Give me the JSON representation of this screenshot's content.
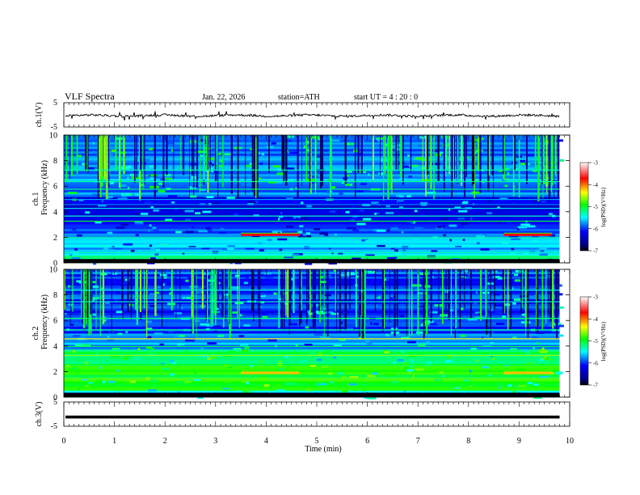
{
  "header": {
    "title": "VLF  Spectra",
    "date": "Jan. 22, 2026",
    "station": "station=ATH",
    "start_ut": "start  UT  =   4  : 20 : 0"
  },
  "panels": {
    "ch1_waveform": {
      "ylabel": "ch.1(V)",
      "ticks": [
        "5",
        "-5"
      ]
    },
    "ch1_spectrogram": {
      "ylabel_top": "ch.1",
      "ylabel": "Frequency  (kHz)"
    },
    "ch2_spectrogram": {
      "ylabel_top": "ch.2",
      "ylabel": "Frequency  (kHz)"
    },
    "ch3_waveform": {
      "ylabel": "ch.3(V)",
      "ticks": [
        "5",
        "-5"
      ]
    }
  },
  "colorbar": {
    "label": "log(PSD)(V²/Hz)",
    "ticks": [
      "-3",
      "-4",
      "-5",
      "-6",
      "-7"
    ],
    "colors": [
      "#ffffff",
      "#ff0000",
      "#ffff00",
      "#00ff00",
      "#00ffff",
      "#0000ff",
      "#000000"
    ]
  },
  "chart_data": {
    "type": "heatmap",
    "xlabel": "Time  (min)",
    "xlim": [
      0,
      10
    ],
    "x_ticks": [
      "0",
      "1",
      "2",
      "3",
      "4",
      "5",
      "6",
      "7",
      "8",
      "9",
      "10"
    ],
    "freq_ylim": [
      0,
      10
    ],
    "freq_ticks": [
      "0",
      "2",
      "4",
      "6",
      "8",
      "10"
    ],
    "volt_ylim": [
      -5,
      5
    ],
    "data_end_min": 9.8,
    "ch1_intense_segments_min": [
      [
        3.5,
        4.65
      ],
      [
        8.7,
        9.65
      ]
    ],
    "ch1_intense_freq_khz": 2.2,
    "ch2_intense_segments_min": [
      [
        3.5,
        4.65
      ],
      [
        8.7,
        9.65
      ]
    ],
    "ch2_intense_freq_khz": 1.9,
    "ch3_level_v": -1.2
  }
}
